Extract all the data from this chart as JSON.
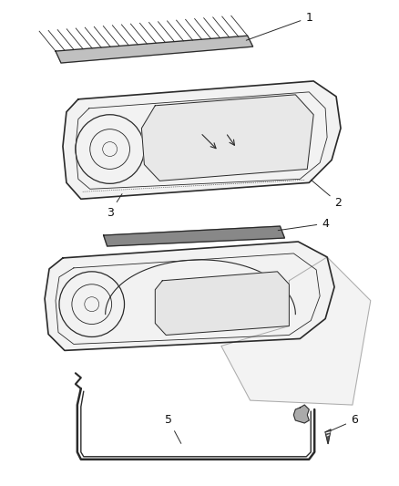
{
  "background_color": "#ffffff",
  "fig_width": 4.39,
  "fig_height": 5.33,
  "dpi": 100,
  "line_color": "#2a2a2a",
  "line_color_light": "#777777"
}
